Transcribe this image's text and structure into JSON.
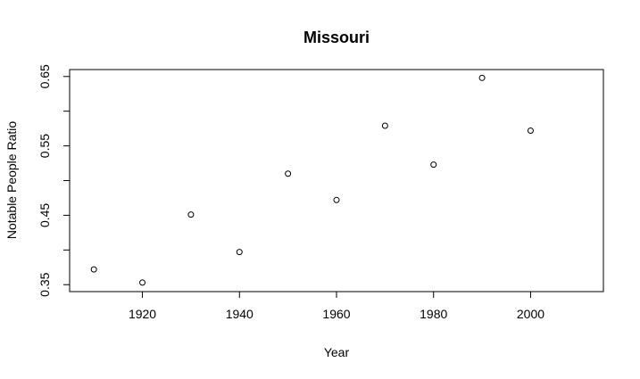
{
  "chart_data": {
    "type": "scatter",
    "title": "Missouri",
    "xlabel": "Year",
    "ylabel": "Notable People Ratio",
    "xlim": [
      1905,
      2015
    ],
    "ylim": [
      0.34,
      0.66
    ],
    "xticks": [
      1920,
      1940,
      1960,
      1980,
      2000
    ],
    "xtick_labels": [
      "1920",
      "1940",
      "1960",
      "1980",
      "2000"
    ],
    "yticks": [
      0.35,
      0.4,
      0.45,
      0.5,
      0.55,
      0.6,
      0.65
    ],
    "ytick_labels": [
      "0.35",
      "",
      "0.45",
      "",
      "0.55",
      "",
      "0.65"
    ],
    "grid": false,
    "legend": "none",
    "points": [
      {
        "x": 1910,
        "y": 0.372
      },
      {
        "x": 1920,
        "y": 0.353
      },
      {
        "x": 1930,
        "y": 0.451
      },
      {
        "x": 1940,
        "y": 0.397
      },
      {
        "x": 1950,
        "y": 0.51
      },
      {
        "x": 1960,
        "y": 0.472
      },
      {
        "x": 1970,
        "y": 0.579
      },
      {
        "x": 1980,
        "y": 0.523
      },
      {
        "x": 1990,
        "y": 0.648
      },
      {
        "x": 2000,
        "y": 0.572
      }
    ]
  }
}
